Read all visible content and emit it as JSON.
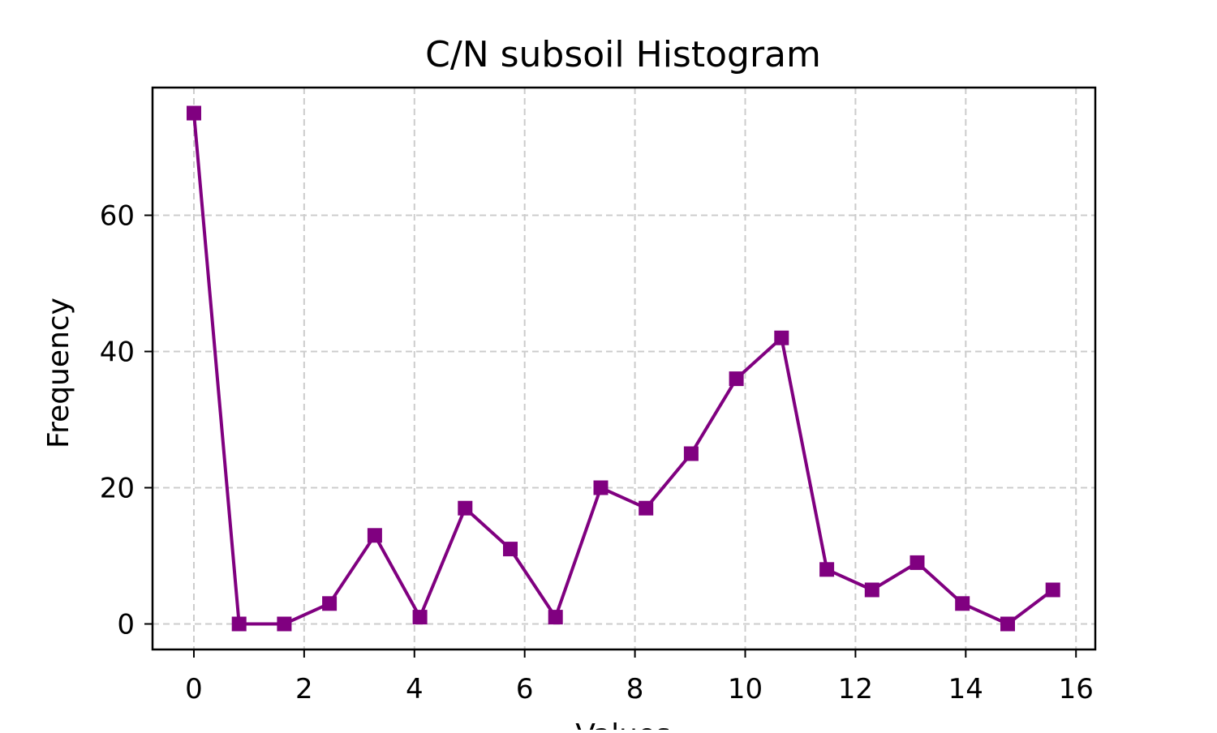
{
  "chart_data": {
    "type": "line",
    "title": "C/N subsoil Histogram",
    "xlabel": "Values",
    "ylabel": "Frequency",
    "xlim": [
      -0.75,
      16.35
    ],
    "ylim": [
      -3.75,
      78.75
    ],
    "xticks": [
      0,
      2,
      4,
      6,
      8,
      10,
      12,
      14,
      16
    ],
    "yticks": [
      0,
      20,
      40,
      60
    ],
    "grid": true,
    "legend": "none",
    "series": [
      {
        "color": "#800080",
        "marker": "square",
        "x": [
          0.0,
          0.82,
          1.64,
          2.46,
          3.28,
          4.1,
          4.92,
          5.74,
          6.56,
          7.38,
          8.2,
          9.02,
          9.84,
          10.66,
          11.48,
          12.3,
          13.12,
          13.94,
          14.76,
          15.58
        ],
        "y": [
          75,
          0,
          0,
          3,
          13,
          1,
          17,
          11,
          1,
          20,
          17,
          25,
          36,
          42,
          8,
          5,
          9,
          3,
          0,
          5
        ]
      }
    ]
  }
}
